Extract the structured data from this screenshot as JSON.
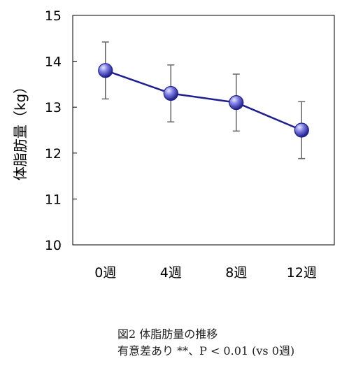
{
  "chart_data": {
    "type": "line",
    "title": "",
    "xlabel": "",
    "ylabel": "体脂肪量（kg）",
    "categories": [
      "0週",
      "4週",
      "8週",
      "12週"
    ],
    "series": [
      {
        "values": [
          13.8,
          13.3,
          13.1,
          12.5
        ],
        "error": [
          0.62,
          0.62,
          0.62,
          0.62
        ]
      }
    ],
    "ylim": [
      10,
      15
    ],
    "yticks": [
      "10",
      "11",
      "12",
      "13",
      "14",
      "15"
    ],
    "grid": false,
    "legend": "none",
    "colors": {
      "line": "#1f1f8f",
      "marker": "#5a5ad6",
      "error": "#666666"
    }
  },
  "caption": {
    "line1": "図2 体脂肪量の推移",
    "line2": "有意差あり  **、P < 0.01 (vs 0週)"
  }
}
